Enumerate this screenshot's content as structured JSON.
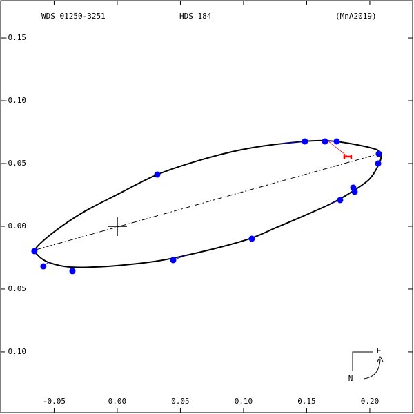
{
  "chart_data": {
    "type": "scatter",
    "wds_id": "WDS 01250-3251",
    "title": "HDS 184",
    "reference": "(MnA2019)",
    "xlim": [
      -0.0923,
      0.2339
    ],
    "ylim": [
      0.1484,
      -0.1797
    ],
    "xticks": [
      -0.05,
      {
        "value": 0,
        "label": "0.00"
      },
      0.05,
      {
        "value": 0.1,
        "label": "0.10"
      },
      0.15,
      {
        "value": 0.2,
        "label": "0.20"
      }
    ],
    "yticks": [
      -0.15,
      {
        "value": -0.1,
        "label": "-0.10"
      },
      -0.05,
      {
        "value": 0,
        "label": "0.00"
      },
      0.05,
      {
        "value": 0.1,
        "label": "0.10"
      }
    ],
    "series": [
      {
        "color": "#0000ff",
        "x": [
          -0.0656,
          -0.0585,
          -0.0355,
          0.0317,
          0.0443,
          0.1066,
          0.1486,
          0.1645,
          0.1738,
          0.2071,
          0.2066,
          0.1869,
          0.188,
          0.1765
        ],
        "y": [
          0.0198,
          0.0319,
          0.0357,
          -0.0412,
          0.0269,
          0.0099,
          -0.0676,
          -0.0676,
          -0.0676,
          -0.0577,
          -0.05,
          -0.0308,
          -0.0275,
          -0.0209
        ]
      },
      {
        "color": "#ff0000",
        "x": [
          0.1825
        ],
        "y": [
          -0.0555
        ]
      }
    ],
    "orbit": {
      "color": "#000000",
      "x": [
        -0.0645,
        -0.0492,
        -0.0273,
        0.0,
        0.0317,
        0.0656,
        0.0984,
        0.1311,
        0.1667,
        0.2022,
        0.2087,
        0.2066,
        0.1995,
        0.1858,
        0.1694,
        0.1475,
        0.1257,
        0.1066,
        0.082,
        0.0546,
        0.0328,
        0.0055,
        -0.0164,
        -0.0383,
        -0.0546,
        -0.0628
      ],
      "y": [
        0.0176,
        0.0038,
        -0.011,
        -0.0253,
        -0.0412,
        -0.0527,
        -0.061,
        -0.0659,
        -0.0681,
        -0.0621,
        -0.0566,
        -0.0484,
        -0.0374,
        -0.0275,
        -0.0181,
        -0.0082,
        0.0011,
        0.0093,
        0.0165,
        0.0231,
        0.0275,
        0.0308,
        0.0324,
        0.0324,
        0.0286,
        0.0231
      ]
    },
    "line_of_apsides": {
      "x": [
        -0.0645,
        0.2071
      ],
      "y": [
        0.0187,
        -0.0577
      ]
    },
    "primary": {
      "x": 0,
      "y": 0
    },
    "compass": {
      "east": "E",
      "north": "N"
    }
  }
}
